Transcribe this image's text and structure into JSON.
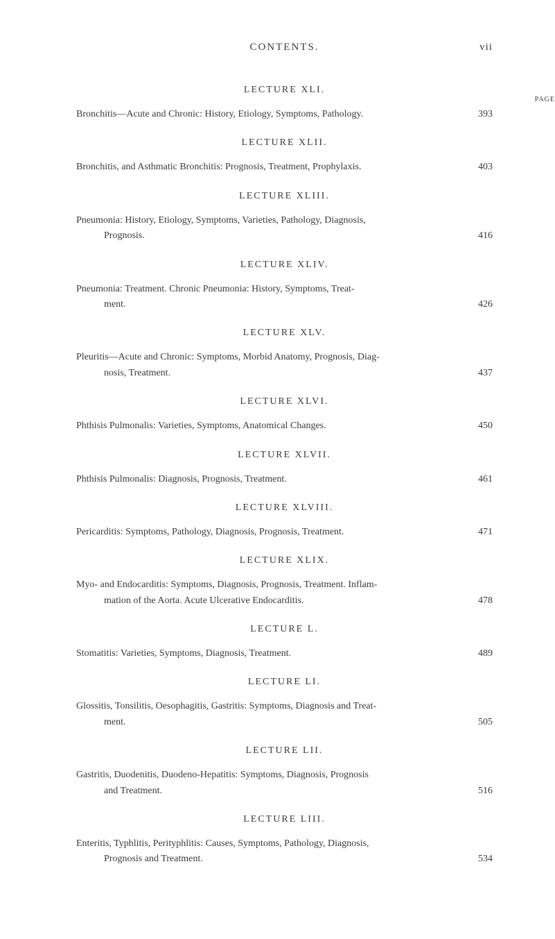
{
  "header": {
    "title": "CONTENTS.",
    "pageNumber": "vii",
    "pageLabel": "PAGE"
  },
  "lectures": [
    {
      "title": "LECTURE XLI.",
      "text": "Bronchitis—Acute and Chronic: History, Etiology, Symptoms, Pathology.",
      "page": "393"
    },
    {
      "title": "LECTURE XLII.",
      "text": "Bronchitis, and Asthmatic Bronchitis: Prognosis, Treatment, Prophylaxis.",
      "page": "403"
    },
    {
      "title": "LECTURE XLIII.",
      "text": "Pneumonia: History, Etiology, Symptoms, Varieties, Pathology, Diagnosis,",
      "textIndent": "Prognosis.",
      "page": "416"
    },
    {
      "title": "LECTURE XLIV.",
      "text": "Pneumonia: Treatment. Chronic Pneumonia: History, Symptoms, Treat-",
      "textIndent": "ment.",
      "page": "426"
    },
    {
      "title": "LECTURE XLV.",
      "text": "Pleuritis—Acute and Chronic: Symptoms, Morbid Anatomy, Prognosis, Diag-",
      "textIndent": "nosis, Treatment.",
      "page": "437"
    },
    {
      "title": "LECTURE XLVI.",
      "text": "Phthisis Pulmonalis: Varieties, Symptoms, Anatomical Changes.",
      "page": "450"
    },
    {
      "title": "LECTURE XLVII.",
      "text": "Phthisis Pulmonalis: Diagnosis, Prognosis, Treatment.",
      "page": "461"
    },
    {
      "title": "LECTURE XLVIII.",
      "text": "Pericarditis: Symptoms, Pathology, Diagnosis, Prognosis, Treatment.",
      "page": "471"
    },
    {
      "title": "LECTURE XLIX.",
      "text": "Myo- and Endocarditis: Symptoms, Diagnosis, Prognosis, Treatment. Inflam-",
      "textIndent": "mation of the Aorta. Acute Ulcerative Endocarditis.",
      "page": "478"
    },
    {
      "title": "LECTURE L.",
      "text": "Stomatitis: Varieties, Symptoms, Diagnosis, Treatment.",
      "page": "489"
    },
    {
      "title": "LECTURE LI.",
      "text": "Glossitis, Tonsilitis, Oesophagitis, Gastritis: Symptoms, Diagnosis and Treat-",
      "textIndent": "ment.",
      "page": "505"
    },
    {
      "title": "LECTURE LII.",
      "text": "Gastritis, Duodenitis, Duodeno-Hepatitis: Symptoms, Diagnosis, Prognosis",
      "textIndent": "and Treatment.",
      "page": "516"
    },
    {
      "title": "LECTURE LIII.",
      "text": "Enteritis, Typhlitis, Perityphlitis: Causes, Symptoms, Pathology, Diagnosis,",
      "textIndent": "Prognosis and Treatment.",
      "page": "534"
    }
  ]
}
